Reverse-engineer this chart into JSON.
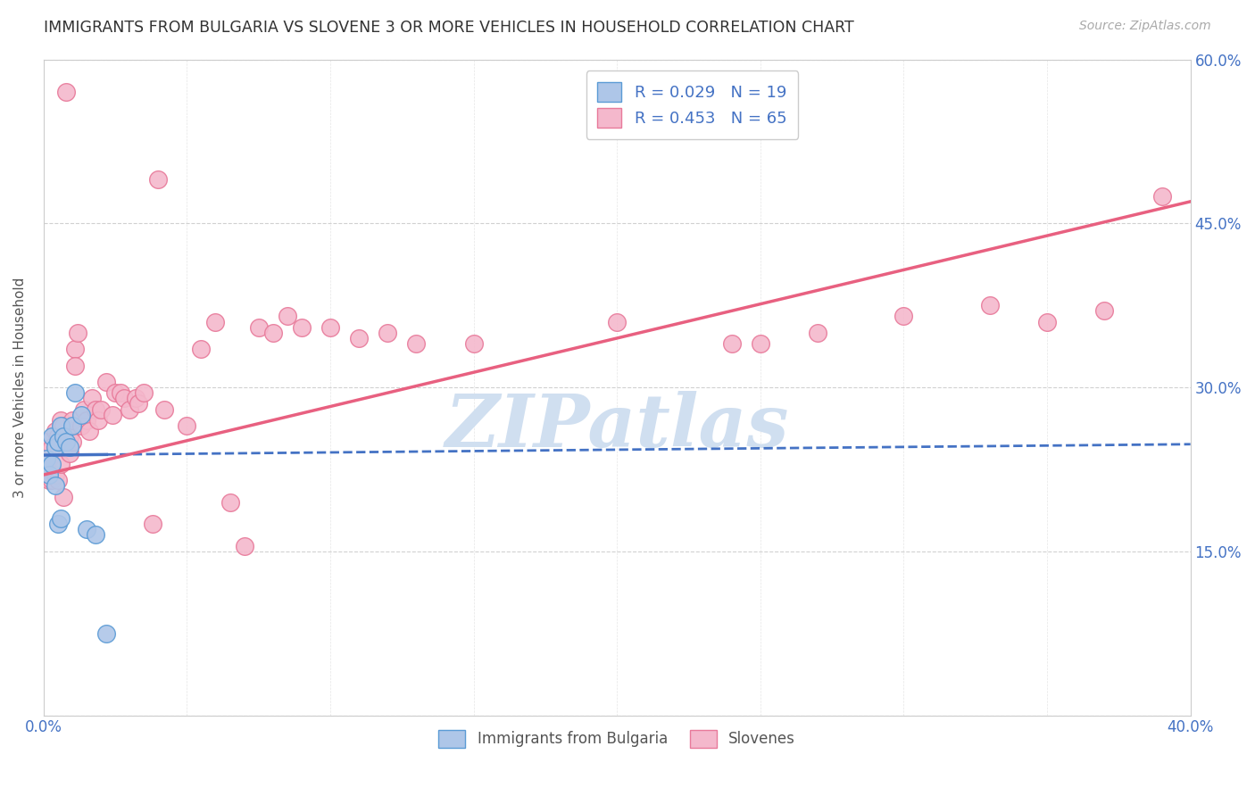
{
  "title": "IMMIGRANTS FROM BULGARIA VS SLOVENE 3 OR MORE VEHICLES IN HOUSEHOLD CORRELATION CHART",
  "source": "Source: ZipAtlas.com",
  "ylabel": "3 or more Vehicles in Household",
  "x_min": 0.0,
  "x_max": 0.4,
  "y_min": 0.0,
  "y_max": 0.6,
  "yticks": [
    0.0,
    0.15,
    0.3,
    0.45,
    0.6
  ],
  "ytick_labels": [
    "",
    "15.0%",
    "30.0%",
    "45.0%",
    "60.0%"
  ],
  "xticks": [
    0.0,
    0.05,
    0.1,
    0.15,
    0.2,
    0.25,
    0.3,
    0.35,
    0.4
  ],
  "xtick_labels": [
    "0.0%",
    "",
    "",
    "",
    "",
    "",
    "",
    "",
    "40.0%"
  ],
  "bulgaria_color": "#aec6e8",
  "bulgaria_edge_color": "#5b9bd5",
  "slovene_color": "#f4b8cc",
  "slovene_edge_color": "#e87a9a",
  "bulgaria_R": 0.029,
  "bulgaria_N": 19,
  "slovene_R": 0.453,
  "slovene_N": 65,
  "legend_R_color": "#4472c4",
  "legend_label_bulgaria": "Immigrants from Bulgaria",
  "legend_label_slovene": "Slovenes",
  "bulgaria_line_color": "#4472c4",
  "slovene_line_color": "#e86080",
  "watermark": "ZIPatlas",
  "watermark_color": "#d0dff0",
  "background_color": "#ffffff",
  "grid_color": "#cccccc",
  "axis_color": "#cccccc",
  "tick_label_color": "#4472c4",
  "title_color": "#333333",
  "bulgaria_scatter_x": [
    0.001,
    0.002,
    0.003,
    0.003,
    0.004,
    0.004,
    0.005,
    0.005,
    0.006,
    0.006,
    0.007,
    0.008,
    0.009,
    0.01,
    0.011,
    0.013,
    0.015,
    0.018,
    0.022
  ],
  "bulgaria_scatter_y": [
    0.235,
    0.22,
    0.255,
    0.23,
    0.245,
    0.21,
    0.25,
    0.175,
    0.265,
    0.18,
    0.255,
    0.25,
    0.245,
    0.265,
    0.295,
    0.275,
    0.17,
    0.165,
    0.075
  ],
  "slovene_scatter_x": [
    0.001,
    0.002,
    0.002,
    0.003,
    0.003,
    0.004,
    0.004,
    0.005,
    0.005,
    0.006,
    0.006,
    0.007,
    0.007,
    0.008,
    0.008,
    0.009,
    0.009,
    0.01,
    0.01,
    0.011,
    0.011,
    0.012,
    0.013,
    0.014,
    0.015,
    0.016,
    0.017,
    0.018,
    0.019,
    0.02,
    0.022,
    0.024,
    0.025,
    0.027,
    0.028,
    0.03,
    0.032,
    0.033,
    0.035,
    0.038,
    0.04,
    0.042,
    0.05,
    0.055,
    0.06,
    0.065,
    0.07,
    0.075,
    0.08,
    0.085,
    0.09,
    0.1,
    0.11,
    0.12,
    0.13,
    0.15,
    0.2,
    0.24,
    0.25,
    0.27,
    0.3,
    0.33,
    0.35,
    0.37,
    0.39
  ],
  "slovene_scatter_y": [
    0.25,
    0.235,
    0.215,
    0.245,
    0.215,
    0.26,
    0.22,
    0.255,
    0.215,
    0.27,
    0.23,
    0.265,
    0.2,
    0.57,
    0.25,
    0.255,
    0.24,
    0.27,
    0.25,
    0.335,
    0.32,
    0.35,
    0.265,
    0.28,
    0.27,
    0.26,
    0.29,
    0.28,
    0.27,
    0.28,
    0.305,
    0.275,
    0.295,
    0.295,
    0.29,
    0.28,
    0.29,
    0.285,
    0.295,
    0.175,
    0.49,
    0.28,
    0.265,
    0.335,
    0.36,
    0.195,
    0.155,
    0.355,
    0.35,
    0.365,
    0.355,
    0.355,
    0.345,
    0.35,
    0.34,
    0.34,
    0.36,
    0.34,
    0.34,
    0.35,
    0.365,
    0.375,
    0.36,
    0.37,
    0.475
  ],
  "bulgaria_line_y0": 0.238,
  "bulgaria_line_y1": 0.248,
  "slovene_line_y0": 0.22,
  "slovene_line_y1": 0.47
}
